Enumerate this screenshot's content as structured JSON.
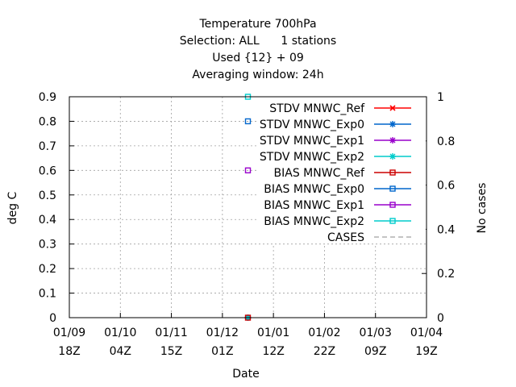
{
  "title_lines": [
    "Temperature 700hPa",
    "Selection: ALL      1 stations",
    "Used {12} + 09",
    "Averaging window: 24h"
  ],
  "chart_data": {
    "type": "line",
    "title": "Temperature 700hPa",
    "subtitle": [
      "Selection: ALL      1 stations",
      "Used {12} + 09",
      "Averaging window: 24h"
    ],
    "xlabel": "Date",
    "ylabel": "deg C",
    "y2label": "No cases",
    "ylim": [
      0,
      0.9
    ],
    "y2lim": [
      0,
      1
    ],
    "y_ticks": [
      "0",
      "0.1",
      "0.2",
      "0.3",
      "0.4",
      "0.5",
      "0.6",
      "0.7",
      "0.8",
      "0.9"
    ],
    "y2_ticks": [
      "0",
      "0.2",
      "0.4",
      "0.6",
      "0.8",
      "1"
    ],
    "x_ticks": [
      {
        "date": "01/09",
        "hour": "18Z"
      },
      {
        "date": "01/10",
        "hour": "04Z"
      },
      {
        "date": "01/11",
        "hour": "15Z"
      },
      {
        "date": "01/12",
        "hour": "01Z"
      },
      {
        "date": "01/01",
        "hour": "12Z"
      },
      {
        "date": "01/02",
        "hour": "22Z"
      },
      {
        "date": "01/03",
        "hour": "09Z"
      },
      {
        "date": "01/04",
        "hour": "19Z"
      }
    ],
    "grid": true,
    "legend_position": "top-right",
    "series": [
      {
        "name": "STDV MNWC_Ref",
        "color": "#ff0000",
        "marker": "x",
        "points": [
          {
            "x_tick": 3.5,
            "y": 0
          }
        ]
      },
      {
        "name": "STDV MNWC_Exp0",
        "color": "#0066cc",
        "marker": "star",
        "points": [
          {
            "x_tick": 3.5,
            "y": 0
          }
        ]
      },
      {
        "name": "STDV MNWC_Exp1",
        "color": "#9900cc",
        "marker": "star",
        "points": [
          {
            "x_tick": 3.5,
            "y": 0
          }
        ]
      },
      {
        "name": "STDV MNWC_Exp2",
        "color": "#00cccc",
        "marker": "star",
        "points": [
          {
            "x_tick": 3.5,
            "y": 0
          }
        ]
      },
      {
        "name": "BIAS MNWC_Ref",
        "color": "#cc0000",
        "marker": "square",
        "points": [
          {
            "x_tick": 3.5,
            "y": 0
          }
        ]
      },
      {
        "name": "BIAS MNWC_Exp0",
        "color": "#0066cc",
        "marker": "square",
        "points": [
          {
            "x_tick": 3.5,
            "y": 0.8
          }
        ]
      },
      {
        "name": "BIAS MNWC_Exp1",
        "color": "#9900cc",
        "marker": "square",
        "points": [
          {
            "x_tick": 3.5,
            "y": 0.6
          }
        ]
      },
      {
        "name": "BIAS MNWC_Exp2",
        "color": "#00cccc",
        "marker": "square",
        "points": [
          {
            "x_tick": 3.5,
            "y": 0.9
          }
        ]
      },
      {
        "name": "CASES",
        "color": "#888888",
        "marker": "none",
        "dashed": true,
        "axis": "y2",
        "points": [
          {
            "x_tick": 3.5,
            "y": 0
          }
        ]
      }
    ]
  }
}
